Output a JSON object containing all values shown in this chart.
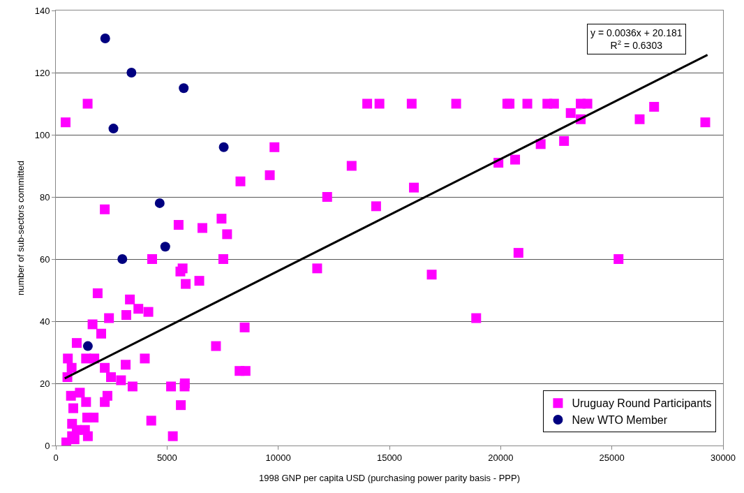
{
  "chart_data": {
    "type": "scatter",
    "xlabel": "1998 GNP per capita USD (purchasing power parity basis - PPP)",
    "ylabel": "number of sub-sectors committed",
    "xlim": [
      0,
      30000
    ],
    "xticks": [
      0,
      5000,
      10000,
      15000,
      20000,
      25000,
      30000
    ],
    "ylim": [
      0,
      140
    ],
    "yticks": [
      0,
      20,
      40,
      60,
      80,
      100,
      120,
      140
    ],
    "grid": "y",
    "legend": "bottom right",
    "annotations": [
      "y = 0.0036x + 20.181",
      "R$^{2}$ = 0.6303"
    ],
    "series": [
      {
        "name": "Uruguay Round Participants",
        "color": "#ff00ff",
        "marker": "square",
        "x": [
          440,
          1430,
          2200,
          4330,
          5520,
          5700,
          5600,
          5840,
          6590,
          7450,
          7530,
          7700,
          6450,
          8300,
          9620,
          9830,
          8490,
          7200,
          8260,
          8530,
          14000,
          14550,
          16000,
          18000,
          20300,
          20400,
          21200,
          22100,
          22400,
          23600,
          23900,
          23150,
          23600,
          12200,
          13300,
          14400,
          16100,
          11750,
          16900,
          18900,
          19900,
          20650,
          21800,
          22850,
          20800,
          25300,
          26250,
          26900,
          29200,
          1880,
          3330,
          3710,
          4160,
          3170,
          2390,
          1650,
          2040,
          940,
          540,
          1360,
          1730,
          4000,
          710,
          2200,
          3140,
          520,
          2480,
          2930,
          3450,
          5180,
          5800,
          5790,
          5620,
          4290,
          5260,
          680,
          1080,
          1360,
          2320,
          2200,
          785,
          730,
          1410,
          1700,
          1310,
          940,
          730,
          1440,
          470,
          840
        ],
        "values": [
          104,
          110,
          76,
          60,
          71,
          57,
          56,
          52,
          70,
          73,
          60,
          68,
          53,
          85,
          87,
          96,
          38,
          32,
          24,
          24,
          110,
          110,
          110,
          110,
          110,
          110,
          110,
          110,
          110,
          110,
          110,
          107,
          105,
          80,
          90,
          77,
          83,
          57,
          55,
          41,
          91,
          92,
          97,
          98,
          62,
          60,
          105,
          109,
          104,
          49,
          47,
          44,
          43,
          42,
          41,
          39,
          36,
          33,
          28,
          28,
          28,
          28,
          25,
          25,
          26,
          22,
          22,
          21,
          19,
          19,
          20,
          19,
          13,
          8,
          3,
          16,
          17,
          14,
          16,
          14,
          12,
          7,
          9,
          9,
          5,
          5,
          3,
          3,
          1,
          2
        ]
      },
      {
        "name": "New WTO Member",
        "color": "#000080",
        "marker": "circle",
        "x": [
          2220,
          3400,
          5750,
          2590,
          7550,
          4670,
          4920,
          2990,
          1440
        ],
        "values": [
          131,
          120,
          115,
          102,
          96,
          78,
          64,
          60,
          32
        ]
      },
      {
        "type": "line",
        "color": "#000000",
        "marker": "none",
        "line_style": "solid",
        "x": [
          400,
          29300
        ],
        "values": [
          21.6,
          125.7
        ]
      }
    ]
  }
}
